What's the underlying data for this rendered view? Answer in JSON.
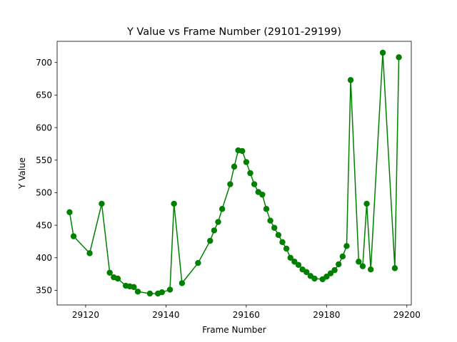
{
  "chart_data": {
    "type": "line",
    "title": "Y Value vs Frame Number (29101-29199)",
    "xlabel": "Frame Number",
    "ylabel": "Y Value",
    "xlim": [
      29112.9,
      29201.1
    ],
    "ylim": [
      327.5,
      732.5
    ],
    "xticks": [
      29120,
      29140,
      29160,
      29180,
      29200
    ],
    "yticks": [
      350,
      400,
      450,
      500,
      550,
      600,
      650,
      700
    ],
    "grid": false,
    "color": "#008000",
    "series": [
      {
        "marker": "circle",
        "x": [
          29116,
          29117,
          29121,
          29124,
          29126,
          29127,
          29128,
          29130,
          29131,
          29132,
          29133,
          29136,
          29138,
          29139,
          29141,
          29142,
          29144,
          29148,
          29151,
          29152,
          29153,
          29154,
          29156,
          29157,
          29158,
          29159,
          29160,
          29161,
          29162,
          29163,
          29164,
          29165,
          29166,
          29167,
          29168,
          29169,
          29170,
          29171,
          29172,
          29173,
          29174,
          29175,
          29176,
          29177,
          29179,
          29180,
          29181,
          29182,
          29183,
          29184,
          29185,
          29186,
          29188,
          29189,
          29190,
          29191,
          29194,
          29197,
          29198
        ],
        "y": [
          470,
          433,
          407,
          483,
          377,
          370,
          368,
          357,
          356,
          355,
          348,
          345,
          345,
          347,
          351,
          483,
          361,
          392,
          426,
          442,
          455,
          475,
          513,
          540,
          565,
          564,
          547,
          530,
          513,
          501,
          497,
          475,
          457,
          446,
          435,
          424,
          414,
          400,
          394,
          389,
          382,
          378,
          372,
          368,
          367,
          371,
          376,
          381,
          390,
          402,
          418,
          673,
          394,
          387,
          483,
          382,
          715,
          384,
          708
        ]
      }
    ]
  }
}
